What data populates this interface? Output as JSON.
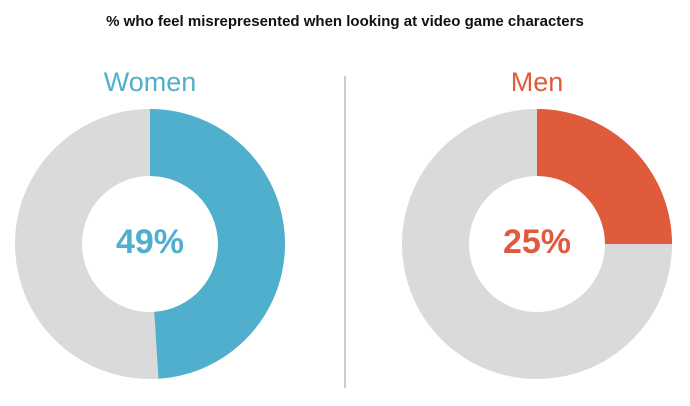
{
  "title": "% who feel misrepresented when looking at video game characters",
  "chart_data": [
    {
      "type": "donut",
      "title": "Women",
      "values": [
        49
      ],
      "value_labels": [
        "49%"
      ],
      "color": "#4fafcc"
    },
    {
      "type": "donut",
      "title": "Men",
      "values": [
        25
      ],
      "value_labels": [
        "25%"
      ],
      "color": "#e05a3c"
    }
  ]
}
